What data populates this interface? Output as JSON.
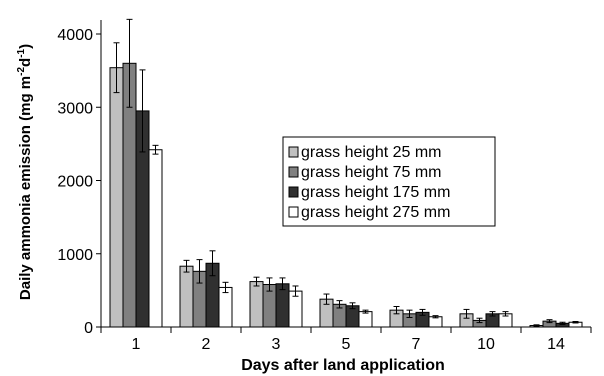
{
  "chart_data": {
    "type": "bar",
    "xlabel": "Days after land application",
    "ylabel": "Daily ammonia emission (mg m",
    "ylabel_sup1": "-2",
    "ylabel_mid": "d",
    "ylabel_sup2": "-1",
    "ylabel_end": ")",
    "ylim": [
      0,
      4000
    ],
    "yticks": [
      "0",
      "1000",
      "2000",
      "3000",
      "4000"
    ],
    "ytick_values": [
      0,
      1000,
      2000,
      3000,
      4000
    ],
    "categories": [
      "1",
      "2",
      "3",
      "5",
      "7",
      "10",
      "14"
    ],
    "grid": false,
    "legend_position": "center-right",
    "series": [
      {
        "name": "grass height 25 mm",
        "color": "#c0c0c0",
        "values": [
          3540,
          830,
          620,
          380,
          230,
          180,
          20
        ],
        "errors": [
          340,
          80,
          60,
          70,
          50,
          60,
          10
        ]
      },
      {
        "name": "grass height 75 mm",
        "color": "#808080",
        "values": [
          3600,
          760,
          580,
          310,
          180,
          90,
          80
        ],
        "errors": [
          600,
          160,
          90,
          50,
          50,
          30,
          20
        ]
      },
      {
        "name": "grass height 175 mm",
        "color": "#303030",
        "values": [
          2950,
          870,
          590,
          290,
          200,
          180,
          50
        ],
        "errors": [
          560,
          170,
          80,
          40,
          40,
          30,
          15
        ]
      },
      {
        "name": "grass height 275 mm",
        "color": "#ffffff",
        "values": [
          2420,
          540,
          490,
          210,
          140,
          180,
          65
        ],
        "errors": [
          60,
          70,
          70,
          20,
          15,
          30,
          10
        ]
      }
    ]
  }
}
